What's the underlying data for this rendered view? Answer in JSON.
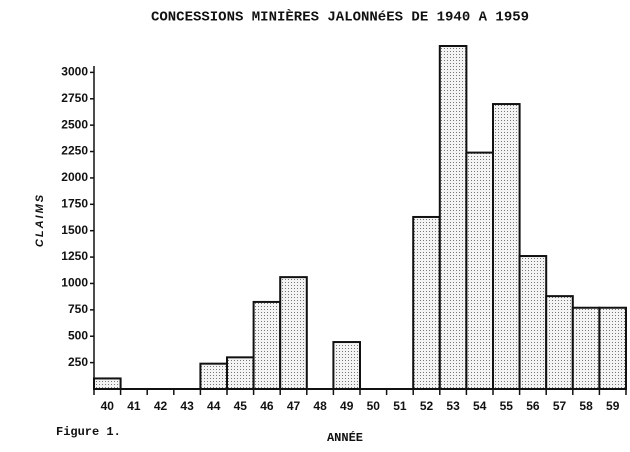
{
  "chart_data": {
    "type": "bar",
    "title": "CONCESSIONS MINIÈRES JALONNéES DE 1940 A 1959",
    "y_label": "CLAIMS",
    "x_label": "ANNÉE",
    "caption": "Figure 1.",
    "categories": [
      "40",
      "41",
      "42",
      "43",
      "44",
      "45",
      "46",
      "47",
      "48",
      "49",
      "50",
      "51",
      "52",
      "53",
      "54",
      "55",
      "56",
      "57",
      "58",
      "59"
    ],
    "values": [
      100,
      0,
      0,
      0,
      240,
      300,
      825,
      1060,
      0,
      445,
      0,
      0,
      1630,
      3250,
      2240,
      2700,
      1260,
      880,
      770,
      770
    ],
    "color": "#e4e4e4",
    "ylim": [
      0,
      3250
    ],
    "yticks": [
      250,
      500,
      750,
      1000,
      1250,
      1500,
      1750,
      2000,
      2250,
      2500,
      2750,
      3000
    ],
    "grid": false
  }
}
